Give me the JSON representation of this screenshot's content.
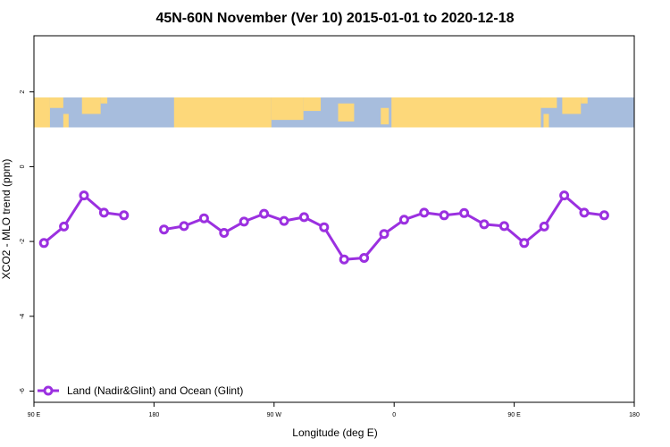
{
  "chart_data": {
    "type": "line",
    "title": "45N-60N November (Ver 10)   2015-01-01 to 2020-12-18",
    "xlabel": "Longitude (deg E)",
    "ylabel": "XCO2 - MLO trend (ppm)",
    "x_ticks": [
      {
        "value": 90,
        "label": "90 E"
      },
      {
        "value": 180,
        "label": "180"
      },
      {
        "value": 270,
        "label": "90 W"
      },
      {
        "value": 360,
        "label": "0"
      },
      {
        "value": 450,
        "label": "90 E"
      },
      {
        "value": 540,
        "label": "180"
      }
    ],
    "y_ticks": [
      {
        "value": 2,
        "label": "2"
      },
      {
        "value": 0,
        "label": "0"
      },
      {
        "value": -2,
        "label": "-2"
      },
      {
        "value": -4,
        "label": "-4"
      },
      {
        "value": -6,
        "label": "-6"
      }
    ],
    "xlim": [
      90,
      540
    ],
    "ylim": [
      -6.3,
      3.5
    ],
    "grid": false,
    "legend_position": "bottom-left",
    "map_band": {
      "y_top": 1.85,
      "y_bottom": 1.05,
      "ocean_color": "#a7bddd",
      "land_color": "#fdd87a"
    },
    "series": [
      {
        "name": "Land (Nadir&Glint) and Ocean (Glint)",
        "color": "#9b30e0",
        "segments": [
          [
            {
              "x": 97.5,
              "y": -2.04
            },
            {
              "x": 112.5,
              "y": -1.6
            },
            {
              "x": 127.5,
              "y": -0.77
            },
            {
              "x": 142.5,
              "y": -1.23
            },
            {
              "x": 157.5,
              "y": -1.3
            }
          ],
          [
            {
              "x": 187.5,
              "y": -1.68
            },
            {
              "x": 202.5,
              "y": -1.59
            },
            {
              "x": 217.5,
              "y": -1.38
            },
            {
              "x": 232.5,
              "y": -1.77
            },
            {
              "x": 247.5,
              "y": -1.47
            },
            {
              "x": 262.5,
              "y": -1.26
            },
            {
              "x": 277.5,
              "y": -1.45
            },
            {
              "x": 292.5,
              "y": -1.35
            },
            {
              "x": 307.5,
              "y": -1.62
            },
            {
              "x": 322.5,
              "y": -2.48
            },
            {
              "x": 337.5,
              "y": -2.44
            },
            {
              "x": 352.5,
              "y": -1.8
            },
            {
              "x": 367.5,
              "y": -1.42
            },
            {
              "x": 382.5,
              "y": -1.23
            },
            {
              "x": 397.5,
              "y": -1.3
            },
            {
              "x": 412.5,
              "y": -1.24
            },
            {
              "x": 427.5,
              "y": -1.54
            },
            {
              "x": 442.5,
              "y": -1.59
            },
            {
              "x": 457.5,
              "y": -2.04
            },
            {
              "x": 472.5,
              "y": -1.6
            },
            {
              "x": 487.5,
              "y": -0.77
            },
            {
              "x": 502.5,
              "y": -1.23
            },
            {
              "x": 517.5,
              "y": -1.3
            }
          ]
        ]
      }
    ]
  }
}
